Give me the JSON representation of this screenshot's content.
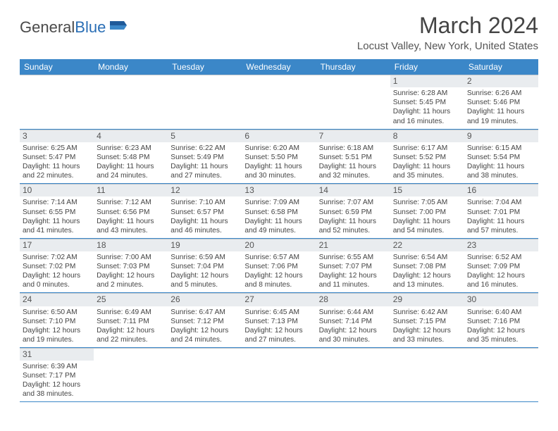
{
  "logo": {
    "text1": "General",
    "text2": "Blue"
  },
  "title": "March 2024",
  "location": "Locust Valley, New York, United States",
  "header_bg": "#3b87c8",
  "daynames": [
    "Sunday",
    "Monday",
    "Tuesday",
    "Wednesday",
    "Thursday",
    "Friday",
    "Saturday"
  ],
  "weeks": [
    [
      null,
      null,
      null,
      null,
      null,
      {
        "d": "1",
        "sr": "6:28 AM",
        "ss": "5:45 PM",
        "dl": "11 hours and 16 minutes."
      },
      {
        "d": "2",
        "sr": "6:26 AM",
        "ss": "5:46 PM",
        "dl": "11 hours and 19 minutes."
      }
    ],
    [
      {
        "d": "3",
        "sr": "6:25 AM",
        "ss": "5:47 PM",
        "dl": "11 hours and 22 minutes."
      },
      {
        "d": "4",
        "sr": "6:23 AM",
        "ss": "5:48 PM",
        "dl": "11 hours and 24 minutes."
      },
      {
        "d": "5",
        "sr": "6:22 AM",
        "ss": "5:49 PM",
        "dl": "11 hours and 27 minutes."
      },
      {
        "d": "6",
        "sr": "6:20 AM",
        "ss": "5:50 PM",
        "dl": "11 hours and 30 minutes."
      },
      {
        "d": "7",
        "sr": "6:18 AM",
        "ss": "5:51 PM",
        "dl": "11 hours and 32 minutes."
      },
      {
        "d": "8",
        "sr": "6:17 AM",
        "ss": "5:52 PM",
        "dl": "11 hours and 35 minutes."
      },
      {
        "d": "9",
        "sr": "6:15 AM",
        "ss": "5:54 PM",
        "dl": "11 hours and 38 minutes."
      }
    ],
    [
      {
        "d": "10",
        "sr": "7:14 AM",
        "ss": "6:55 PM",
        "dl": "11 hours and 41 minutes."
      },
      {
        "d": "11",
        "sr": "7:12 AM",
        "ss": "6:56 PM",
        "dl": "11 hours and 43 minutes."
      },
      {
        "d": "12",
        "sr": "7:10 AM",
        "ss": "6:57 PM",
        "dl": "11 hours and 46 minutes."
      },
      {
        "d": "13",
        "sr": "7:09 AM",
        "ss": "6:58 PM",
        "dl": "11 hours and 49 minutes."
      },
      {
        "d": "14",
        "sr": "7:07 AM",
        "ss": "6:59 PM",
        "dl": "11 hours and 52 minutes."
      },
      {
        "d": "15",
        "sr": "7:05 AM",
        "ss": "7:00 PM",
        "dl": "11 hours and 54 minutes."
      },
      {
        "d": "16",
        "sr": "7:04 AM",
        "ss": "7:01 PM",
        "dl": "11 hours and 57 minutes."
      }
    ],
    [
      {
        "d": "17",
        "sr": "7:02 AM",
        "ss": "7:02 PM",
        "dl": "12 hours and 0 minutes."
      },
      {
        "d": "18",
        "sr": "7:00 AM",
        "ss": "7:03 PM",
        "dl": "12 hours and 2 minutes."
      },
      {
        "d": "19",
        "sr": "6:59 AM",
        "ss": "7:04 PM",
        "dl": "12 hours and 5 minutes."
      },
      {
        "d": "20",
        "sr": "6:57 AM",
        "ss": "7:06 PM",
        "dl": "12 hours and 8 minutes."
      },
      {
        "d": "21",
        "sr": "6:55 AM",
        "ss": "7:07 PM",
        "dl": "12 hours and 11 minutes."
      },
      {
        "d": "22",
        "sr": "6:54 AM",
        "ss": "7:08 PM",
        "dl": "12 hours and 13 minutes."
      },
      {
        "d": "23",
        "sr": "6:52 AM",
        "ss": "7:09 PM",
        "dl": "12 hours and 16 minutes."
      }
    ],
    [
      {
        "d": "24",
        "sr": "6:50 AM",
        "ss": "7:10 PM",
        "dl": "12 hours and 19 minutes."
      },
      {
        "d": "25",
        "sr": "6:49 AM",
        "ss": "7:11 PM",
        "dl": "12 hours and 22 minutes."
      },
      {
        "d": "26",
        "sr": "6:47 AM",
        "ss": "7:12 PM",
        "dl": "12 hours and 24 minutes."
      },
      {
        "d": "27",
        "sr": "6:45 AM",
        "ss": "7:13 PM",
        "dl": "12 hours and 27 minutes."
      },
      {
        "d": "28",
        "sr": "6:44 AM",
        "ss": "7:14 PM",
        "dl": "12 hours and 30 minutes."
      },
      {
        "d": "29",
        "sr": "6:42 AM",
        "ss": "7:15 PM",
        "dl": "12 hours and 33 minutes."
      },
      {
        "d": "30",
        "sr": "6:40 AM",
        "ss": "7:16 PM",
        "dl": "12 hours and 35 minutes."
      }
    ],
    [
      {
        "d": "31",
        "sr": "6:39 AM",
        "ss": "7:17 PM",
        "dl": "12 hours and 38 minutes."
      },
      null,
      null,
      null,
      null,
      null,
      null
    ]
  ],
  "labels": {
    "sunrise": "Sunrise: ",
    "sunset": "Sunset: ",
    "daylight": "Daylight: "
  }
}
